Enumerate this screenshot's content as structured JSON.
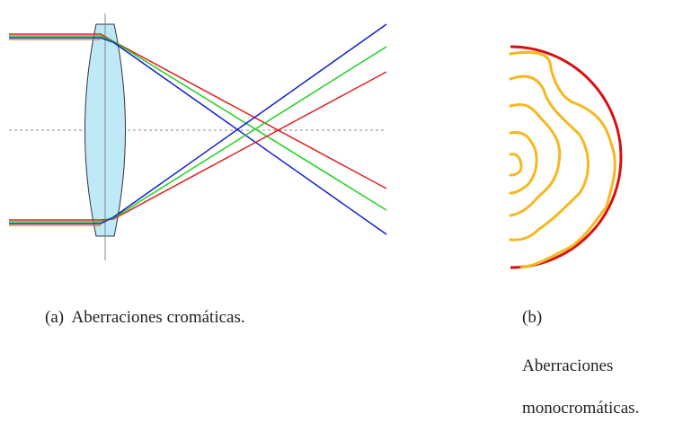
{
  "figures": [
    {
      "label": "(a)",
      "caption": "Aberraciones cromáticas."
    },
    {
      "label": "(b)",
      "caption_lines": [
        "Aberraciones",
        "monocromáticas."
      ]
    }
  ]
}
